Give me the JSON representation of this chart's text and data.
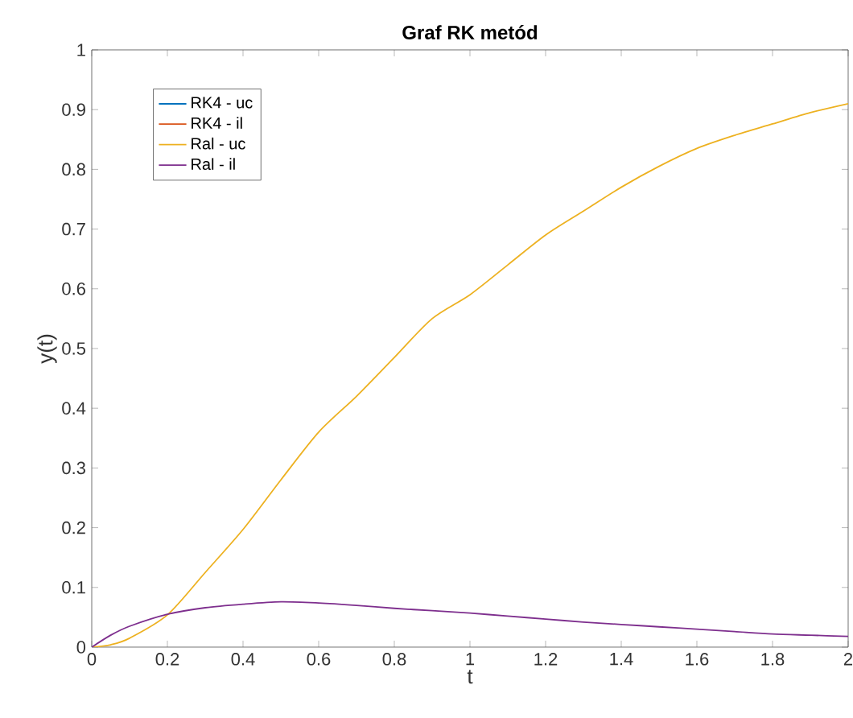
{
  "chart_data": {
    "type": "line",
    "title": "Graf RK metód",
    "xlabel": "t",
    "ylabel": "y(t)",
    "xlim": [
      0,
      2
    ],
    "ylim": [
      0,
      1
    ],
    "xticks": [
      0,
      0.2,
      0.4,
      0.6,
      0.8,
      1,
      1.2,
      1.4,
      1.6,
      1.8,
      2
    ],
    "yticks": [
      0,
      0.1,
      0.2,
      0.3,
      0.4,
      0.5,
      0.6,
      0.7,
      0.8,
      0.9,
      1
    ],
    "x": [
      0,
      0.05,
      0.1,
      0.2,
      0.3,
      0.4,
      0.5,
      0.6,
      0.7,
      0.8,
      0.9,
      1,
      1.1,
      1.2,
      1.3,
      1.4,
      1.5,
      1.6,
      1.7,
      1.8,
      1.9,
      2
    ],
    "series": [
      {
        "name": "RK4 - uc",
        "color": "#0072bd",
        "values": [
          null,
          null,
          null,
          null,
          null,
          null,
          null,
          null,
          null,
          null,
          null,
          null,
          null,
          null,
          null,
          null,
          null,
          null,
          null,
          null,
          null,
          null
        ]
      },
      {
        "name": "RK4 - il",
        "color": "#d95319",
        "values": [
          null,
          null,
          null,
          null,
          null,
          null,
          null,
          null,
          null,
          null,
          null,
          null,
          null,
          null,
          null,
          null,
          null,
          null,
          null,
          null,
          null,
          null
        ]
      },
      {
        "name": "Ral - uc",
        "color": "#edb120",
        "values": [
          0,
          0.004,
          0.015,
          0.054,
          0.125,
          0.197,
          0.28,
          0.36,
          0.42,
          0.485,
          0.55,
          0.59,
          0.64,
          0.69,
          0.73,
          0.77,
          0.805,
          0.835,
          0.857,
          0.876,
          0.895,
          0.91
        ]
      },
      {
        "name": "Ral - il",
        "color": "#7e2f8e",
        "values": [
          0,
          0.02,
          0.035,
          0.055,
          0.066,
          0.072,
          0.076,
          0.074,
          0.07,
          0.065,
          0.061,
          0.057,
          0.052,
          0.047,
          0.042,
          0.038,
          0.034,
          0.03,
          0.026,
          0.022,
          0.02,
          0.018
        ]
      }
    ],
    "legend": "top left",
    "grid": false,
    "marker": "none",
    "line_style": "solid"
  }
}
